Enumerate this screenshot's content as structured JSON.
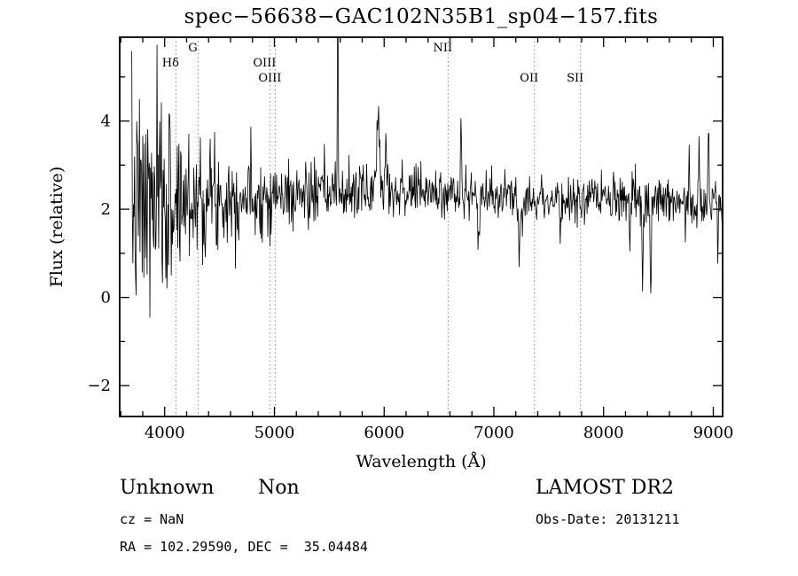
{
  "plot": {
    "title": "spec−56638−GAC102N35B1_sp04−157.fits"
  },
  "footer": {
    "class_label": "Unknown",
    "subclass_label": "Non",
    "survey": "LAMOST DR2",
    "cz": "cz = NaN",
    "obs_date": "Obs-Date: 20131211",
    "ra_dec": "RA = 102.29590, DEC =  35.04484"
  },
  "chart_data": {
    "type": "line",
    "title": "spec−56638−GAC102N35B1_sp04−157.fits",
    "xlabel": "Wavelength (Å)",
    "ylabel": "Flux (relative)",
    "xlim": [
      3590,
      9085
    ],
    "ylim": [
      -2.7,
      5.9
    ],
    "grid": false,
    "line_color": "#000000",
    "marker_line_color": "#8a8a8a",
    "x_ticks": [
      {
        "value": 4000,
        "label": "4000"
      },
      {
        "value": 5000,
        "label": "5000"
      },
      {
        "value": 6000,
        "label": "6000"
      },
      {
        "value": 7000,
        "label": "7000"
      },
      {
        "value": 8000,
        "label": "8000"
      },
      {
        "value": 9000,
        "label": "9000"
      }
    ],
    "x_minor_step": 200,
    "y_ticks": [
      {
        "value": -2,
        "label": "−2"
      },
      {
        "value": 0,
        "label": "0"
      },
      {
        "value": 2,
        "label": "2"
      },
      {
        "value": 4,
        "label": "4"
      }
    ],
    "y_minor_step": 1,
    "spectral_markers": [
      {
        "label": "Hδ",
        "wavelength": 4102,
        "row": 1
      },
      {
        "label": "G",
        "wavelength": 4305,
        "row": 0
      },
      {
        "label": "OIII",
        "wavelength": 4959,
        "row": 1
      },
      {
        "label": "OIII",
        "wavelength": 5007,
        "row": 2
      },
      {
        "label": "NII",
        "wavelength": 6583,
        "row": 0
      },
      {
        "label": "OII",
        "wavelength": 7370,
        "row": 2
      },
      {
        "label": "SII",
        "wavelength": 7790,
        "row": 2
      }
    ],
    "spectrum": {
      "x_start": 3700,
      "x_end": 9085,
      "x_step": 5,
      "seed": 7,
      "continuum": [
        [
          3700,
          2.0
        ],
        [
          4000,
          2.1
        ],
        [
          4300,
          2.3
        ],
        [
          5000,
          2.3
        ],
        [
          5600,
          2.35
        ],
        [
          6000,
          2.45
        ],
        [
          6300,
          2.4
        ],
        [
          6800,
          2.3
        ],
        [
          7300,
          2.25
        ],
        [
          8000,
          2.2
        ],
        [
          8600,
          2.2
        ],
        [
          9085,
          2.1
        ]
      ],
      "noise_sigma": [
        [
          3700,
          1.3
        ],
        [
          3950,
          1.2
        ],
        [
          4150,
          0.95
        ],
        [
          4400,
          0.62
        ],
        [
          4700,
          0.5
        ],
        [
          5200,
          0.38
        ],
        [
          6000,
          0.3
        ],
        [
          6800,
          0.25
        ],
        [
          7600,
          0.24
        ],
        [
          8300,
          0.28
        ],
        [
          9085,
          0.3
        ]
      ],
      "features": [
        {
          "x": 5577,
          "amp": 4.6,
          "width": 5
        },
        {
          "x": 5945,
          "amp": 1.75,
          "width": 18
        },
        {
          "x": 6015,
          "amp": 1.15,
          "width": 12
        },
        {
          "x": 6700,
          "amp": 1.6,
          "width": 7
        },
        {
          "x": 6860,
          "amp": -0.9,
          "width": 12
        },
        {
          "x": 7230,
          "amp": -1.2,
          "width": 10
        },
        {
          "x": 7605,
          "amp": -0.8,
          "width": 12
        },
        {
          "x": 8240,
          "amp": -1.2,
          "width": 8
        },
        {
          "x": 8355,
          "amp": -1.6,
          "width": 8
        },
        {
          "x": 8430,
          "amp": -2.3,
          "width": 7
        },
        {
          "x": 8780,
          "amp": 1.1,
          "width": 6
        },
        {
          "x": 8870,
          "amp": 2.0,
          "width": 6
        },
        {
          "x": 8958,
          "amp": 2.25,
          "width": 6
        },
        {
          "x": 9040,
          "amp": -1.5,
          "width": 6
        }
      ]
    }
  }
}
